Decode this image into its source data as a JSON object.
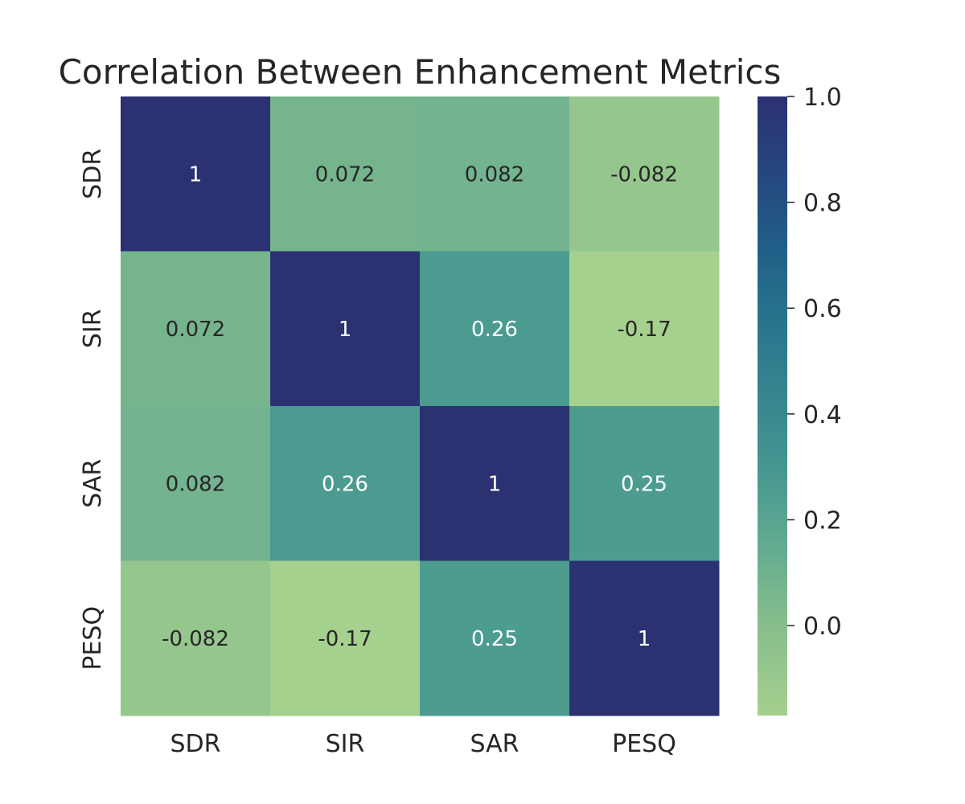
{
  "chart_data": {
    "type": "heatmap",
    "title": "Correlation Between Enhancement Metrics",
    "xlabel": "",
    "ylabel": "",
    "x_categories": [
      "SDR",
      "SIR",
      "SAR",
      "PESQ"
    ],
    "y_categories": [
      "SDR",
      "SIR",
      "SAR",
      "PESQ"
    ],
    "values": [
      [
        1,
        0.072,
        0.082,
        -0.082
      ],
      [
        0.072,
        1,
        0.26,
        -0.17
      ],
      [
        0.082,
        0.26,
        1,
        0.25
      ],
      [
        -0.082,
        -0.17,
        0.25,
        1
      ]
    ],
    "cell_labels": [
      [
        "1",
        "0.072",
        "0.082",
        "-0.082"
      ],
      [
        "0.072",
        "1",
        "0.26",
        "-0.17"
      ],
      [
        "0.082",
        "0.26",
        "1",
        "0.25"
      ],
      [
        "-0.082",
        "-0.17",
        "0.25",
        "1"
      ]
    ],
    "colorbar": {
      "range": [
        -0.17,
        1.0
      ],
      "ticks": [
        0.0,
        0.2,
        0.4,
        0.6,
        0.8,
        1.0
      ],
      "tick_labels": [
        "0.0",
        "0.2",
        "0.4",
        "0.6",
        "0.8",
        "1.0"
      ]
    },
    "colormap": "crest",
    "grid": false,
    "legend": "colorbar-right",
    "colors": {
      "low": "#a5d08e",
      "high": "#2c3172",
      "text_dark": "#262626",
      "text_light": "#ffffff"
    }
  }
}
